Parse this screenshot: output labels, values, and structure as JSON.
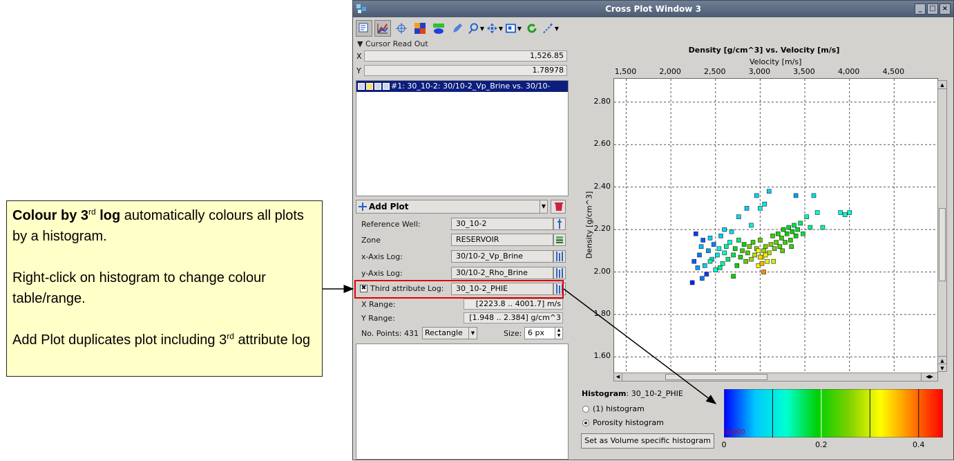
{
  "callout": {
    "line1_bold": "Colour by 3",
    "line1_sup": "rd",
    "line1_bold2": " log",
    "line1_rest": " automatically colours all plots by a histogram.",
    "line2": "Right-click on histogram to change colour table/range.",
    "line3_a": "Add Plot duplicates plot including 3",
    "line3_sup": "rd",
    "line3_b": " attribute log"
  },
  "window": {
    "title": "Cross Plot Window 3",
    "title_buttons": [
      "_",
      "□",
      "×"
    ]
  },
  "toolbar": {
    "icons": [
      "select-plot-icon",
      "crossplot-icon",
      "crosshair-icon",
      "color-blocks-icon",
      "polygon-icon",
      "pencil-icon",
      "zoom-icon",
      "pan-icon",
      "view-icon",
      "refresh-icon",
      "wand-icon"
    ]
  },
  "cursor_readout": {
    "header": "Cursor Read Out",
    "x_label": "X",
    "x_value": "1,526.85",
    "y_label": "Y",
    "y_value": "1.78978"
  },
  "plot_list": {
    "selected_item": "#1: 30_10-2: 30/10-2_Vp_Brine vs. 30/10-"
  },
  "add_plot": {
    "label": "Add Plot"
  },
  "form": {
    "reference_well_label": "Reference Well:",
    "reference_well_value": "30_10-2",
    "zone_label": "Zone",
    "zone_value": "RESERVOIR",
    "x_axis_label": "x-Axis Log:",
    "x_axis_value": "30/10-2_Vp_Brine",
    "y_axis_label": "y-Axis Log:",
    "y_axis_value": "30/10-2_Rho_Brine",
    "third_label": "Third attribute Log:",
    "third_value": "30_10-2_PHIE",
    "third_checked_symbol": "✖",
    "x_range_label": "X Range:",
    "x_range_value": "[2223.8 .. 4001.7] m/s",
    "y_range_label": "Y Range:",
    "y_range_value": "[1.948 .. 2.384] g/cm^3",
    "points_label": "No. Points: 431",
    "shape_value": "Rectangle",
    "size_label": "Size:",
    "size_value": "6 px"
  },
  "chart_data": {
    "type": "scatter",
    "title": "Density [g/cm^3] vs. Velocity [m/s]",
    "xlabel": "Velocity [m/s]",
    "ylabel": "Density [g/cm^3]",
    "x_ticks": [
      "1,500",
      "2,000",
      "2,500",
      "3,000",
      "3,500",
      "4,000",
      "4,500"
    ],
    "x_tick_values": [
      1500,
      2000,
      2500,
      3000,
      3500,
      4000,
      4500
    ],
    "y_ticks": [
      "2.80",
      "2.60",
      "2.40",
      "2.20",
      "2.00",
      "1.80",
      "1.60"
    ],
    "y_tick_values": [
      2.8,
      2.6,
      2.4,
      2.2,
      2.0,
      1.8,
      1.6
    ],
    "xlim": [
      1365,
      5000
    ],
    "ylim": [
      1.52,
      2.91
    ],
    "grid": true,
    "series": [
      {
        "points": [
          [
            2240,
            1.95,
            0.01
          ],
          [
            2260,
            2.05,
            0.03
          ],
          [
            2280,
            2.18,
            0.02
          ],
          [
            2300,
            2.02,
            0.05
          ],
          [
            2320,
            2.08,
            0.04
          ],
          [
            2340,
            2.12,
            0.06
          ],
          [
            2360,
            2.15,
            0.03
          ],
          [
            2380,
            2.03,
            0.07
          ],
          [
            2400,
            1.99,
            0.02
          ],
          [
            2420,
            2.1,
            0.05
          ],
          [
            2440,
            2.16,
            0.08
          ],
          [
            2460,
            2.06,
            0.09
          ],
          [
            2480,
            2.13,
            0.04
          ],
          [
            2500,
            2.01,
            0.12
          ],
          [
            2520,
            2.08,
            0.1
          ],
          [
            2540,
            2.11,
            0.11
          ],
          [
            2560,
            2.17,
            0.07
          ],
          [
            2580,
            2.04,
            0.14
          ],
          [
            2600,
            2.09,
            0.13
          ],
          [
            2620,
            2.12,
            0.15
          ],
          [
            2640,
            2.06,
            0.16
          ],
          [
            2660,
            2.14,
            0.12
          ],
          [
            2680,
            2.19,
            0.09
          ],
          [
            2700,
            2.08,
            0.17
          ],
          [
            2720,
            2.11,
            0.18
          ],
          [
            2740,
            2.03,
            0.2
          ],
          [
            2760,
            2.15,
            0.16
          ],
          [
            2780,
            2.07,
            0.21
          ],
          [
            2800,
            2.1,
            0.22
          ],
          [
            2820,
            2.13,
            0.19
          ],
          [
            2840,
            2.05,
            0.24
          ],
          [
            2860,
            2.09,
            0.23
          ],
          [
            2880,
            2.12,
            0.25
          ],
          [
            2900,
            2.06,
            0.27
          ],
          [
            2920,
            2.14,
            0.22
          ],
          [
            2940,
            2.08,
            0.28
          ],
          [
            2960,
            2.11,
            0.26
          ],
          [
            2980,
            2.03,
            0.33
          ],
          [
            3000,
            2.15,
            0.24
          ],
          [
            3020,
            2.07,
            0.3
          ],
          [
            3040,
            2.1,
            0.27
          ],
          [
            3060,
            2.12,
            0.25
          ],
          [
            3080,
            2.05,
            0.31
          ],
          [
            3100,
            2.09,
            0.28
          ],
          [
            3120,
            2.13,
            0.26
          ],
          [
            3140,
            2.17,
            0.22
          ],
          [
            3160,
            2.11,
            0.25
          ],
          [
            3180,
            2.14,
            0.24
          ],
          [
            3200,
            2.18,
            0.21
          ],
          [
            3220,
            2.12,
            0.23
          ],
          [
            3240,
            2.16,
            0.22
          ],
          [
            3260,
            2.2,
            0.19
          ],
          [
            3280,
            2.14,
            0.22
          ],
          [
            3300,
            2.18,
            0.2
          ],
          [
            3320,
            2.21,
            0.18
          ],
          [
            3340,
            2.15,
            0.21
          ],
          [
            3360,
            2.19,
            0.2
          ],
          [
            3380,
            2.22,
            0.17
          ],
          [
            3400,
            2.17,
            0.19
          ],
          [
            3420,
            2.2,
            0.18
          ],
          [
            3450,
            2.23,
            0.16
          ],
          [
            3480,
            2.18,
            0.17
          ],
          [
            3520,
            2.26,
            0.14
          ],
          [
            3560,
            2.21,
            0.15
          ],
          [
            3640,
            2.28,
            0.13
          ],
          [
            3700,
            2.21,
            0.14
          ],
          [
            3900,
            2.28,
            0.12
          ],
          [
            3950,
            2.27,
            0.13
          ],
          [
            4000,
            2.28,
            0.12
          ],
          [
            2960,
            2.36,
            0.08
          ],
          [
            3050,
            2.32,
            0.1
          ],
          [
            3100,
            2.38,
            0.07
          ],
          [
            3400,
            2.36,
            0.05
          ],
          [
            3600,
            2.36,
            0.09
          ],
          [
            2850,
            2.3,
            0.07
          ],
          [
            3000,
            2.3,
            0.11
          ],
          [
            3040,
            2.0,
            0.38
          ],
          [
            3020,
            2.04,
            0.36
          ],
          [
            3000,
            2.07,
            0.34
          ],
          [
            2980,
            2.1,
            0.32
          ],
          [
            3060,
            2.08,
            0.33
          ],
          [
            2700,
            1.98,
            0.2
          ],
          [
            2440,
            2.05,
            0.14
          ],
          [
            2600,
            2.2,
            0.08
          ],
          [
            2760,
            2.26,
            0.09
          ],
          [
            2900,
            2.22,
            0.11
          ],
          [
            3150,
            2.05,
            0.3
          ],
          [
            3250,
            2.1,
            0.24
          ],
          [
            3350,
            2.12,
            0.22
          ],
          [
            2350,
            1.97,
            0.04
          ],
          [
            2550,
            2.02,
            0.15
          ]
        ]
      }
    ]
  },
  "histogram": {
    "label_bold": "Histogram",
    "label_value": ": 30_10-2_PHIE",
    "option1": "(1) histogram",
    "option2": "Porosity histogram",
    "volume_button": "Set as Volume specific histogram",
    "ticks": [
      "0",
      "0.2",
      "0.4"
    ],
    "tick_values": [
      0,
      0.2,
      0.4
    ],
    "range": [
      0,
      0.45
    ],
    "min_label": "0.000",
    "colors": [
      "#0000ff",
      "#00c8ff",
      "#00ffd0",
      "#00d000",
      "#80d000",
      "#ffff00",
      "#ff8000",
      "#ff0000"
    ]
  }
}
